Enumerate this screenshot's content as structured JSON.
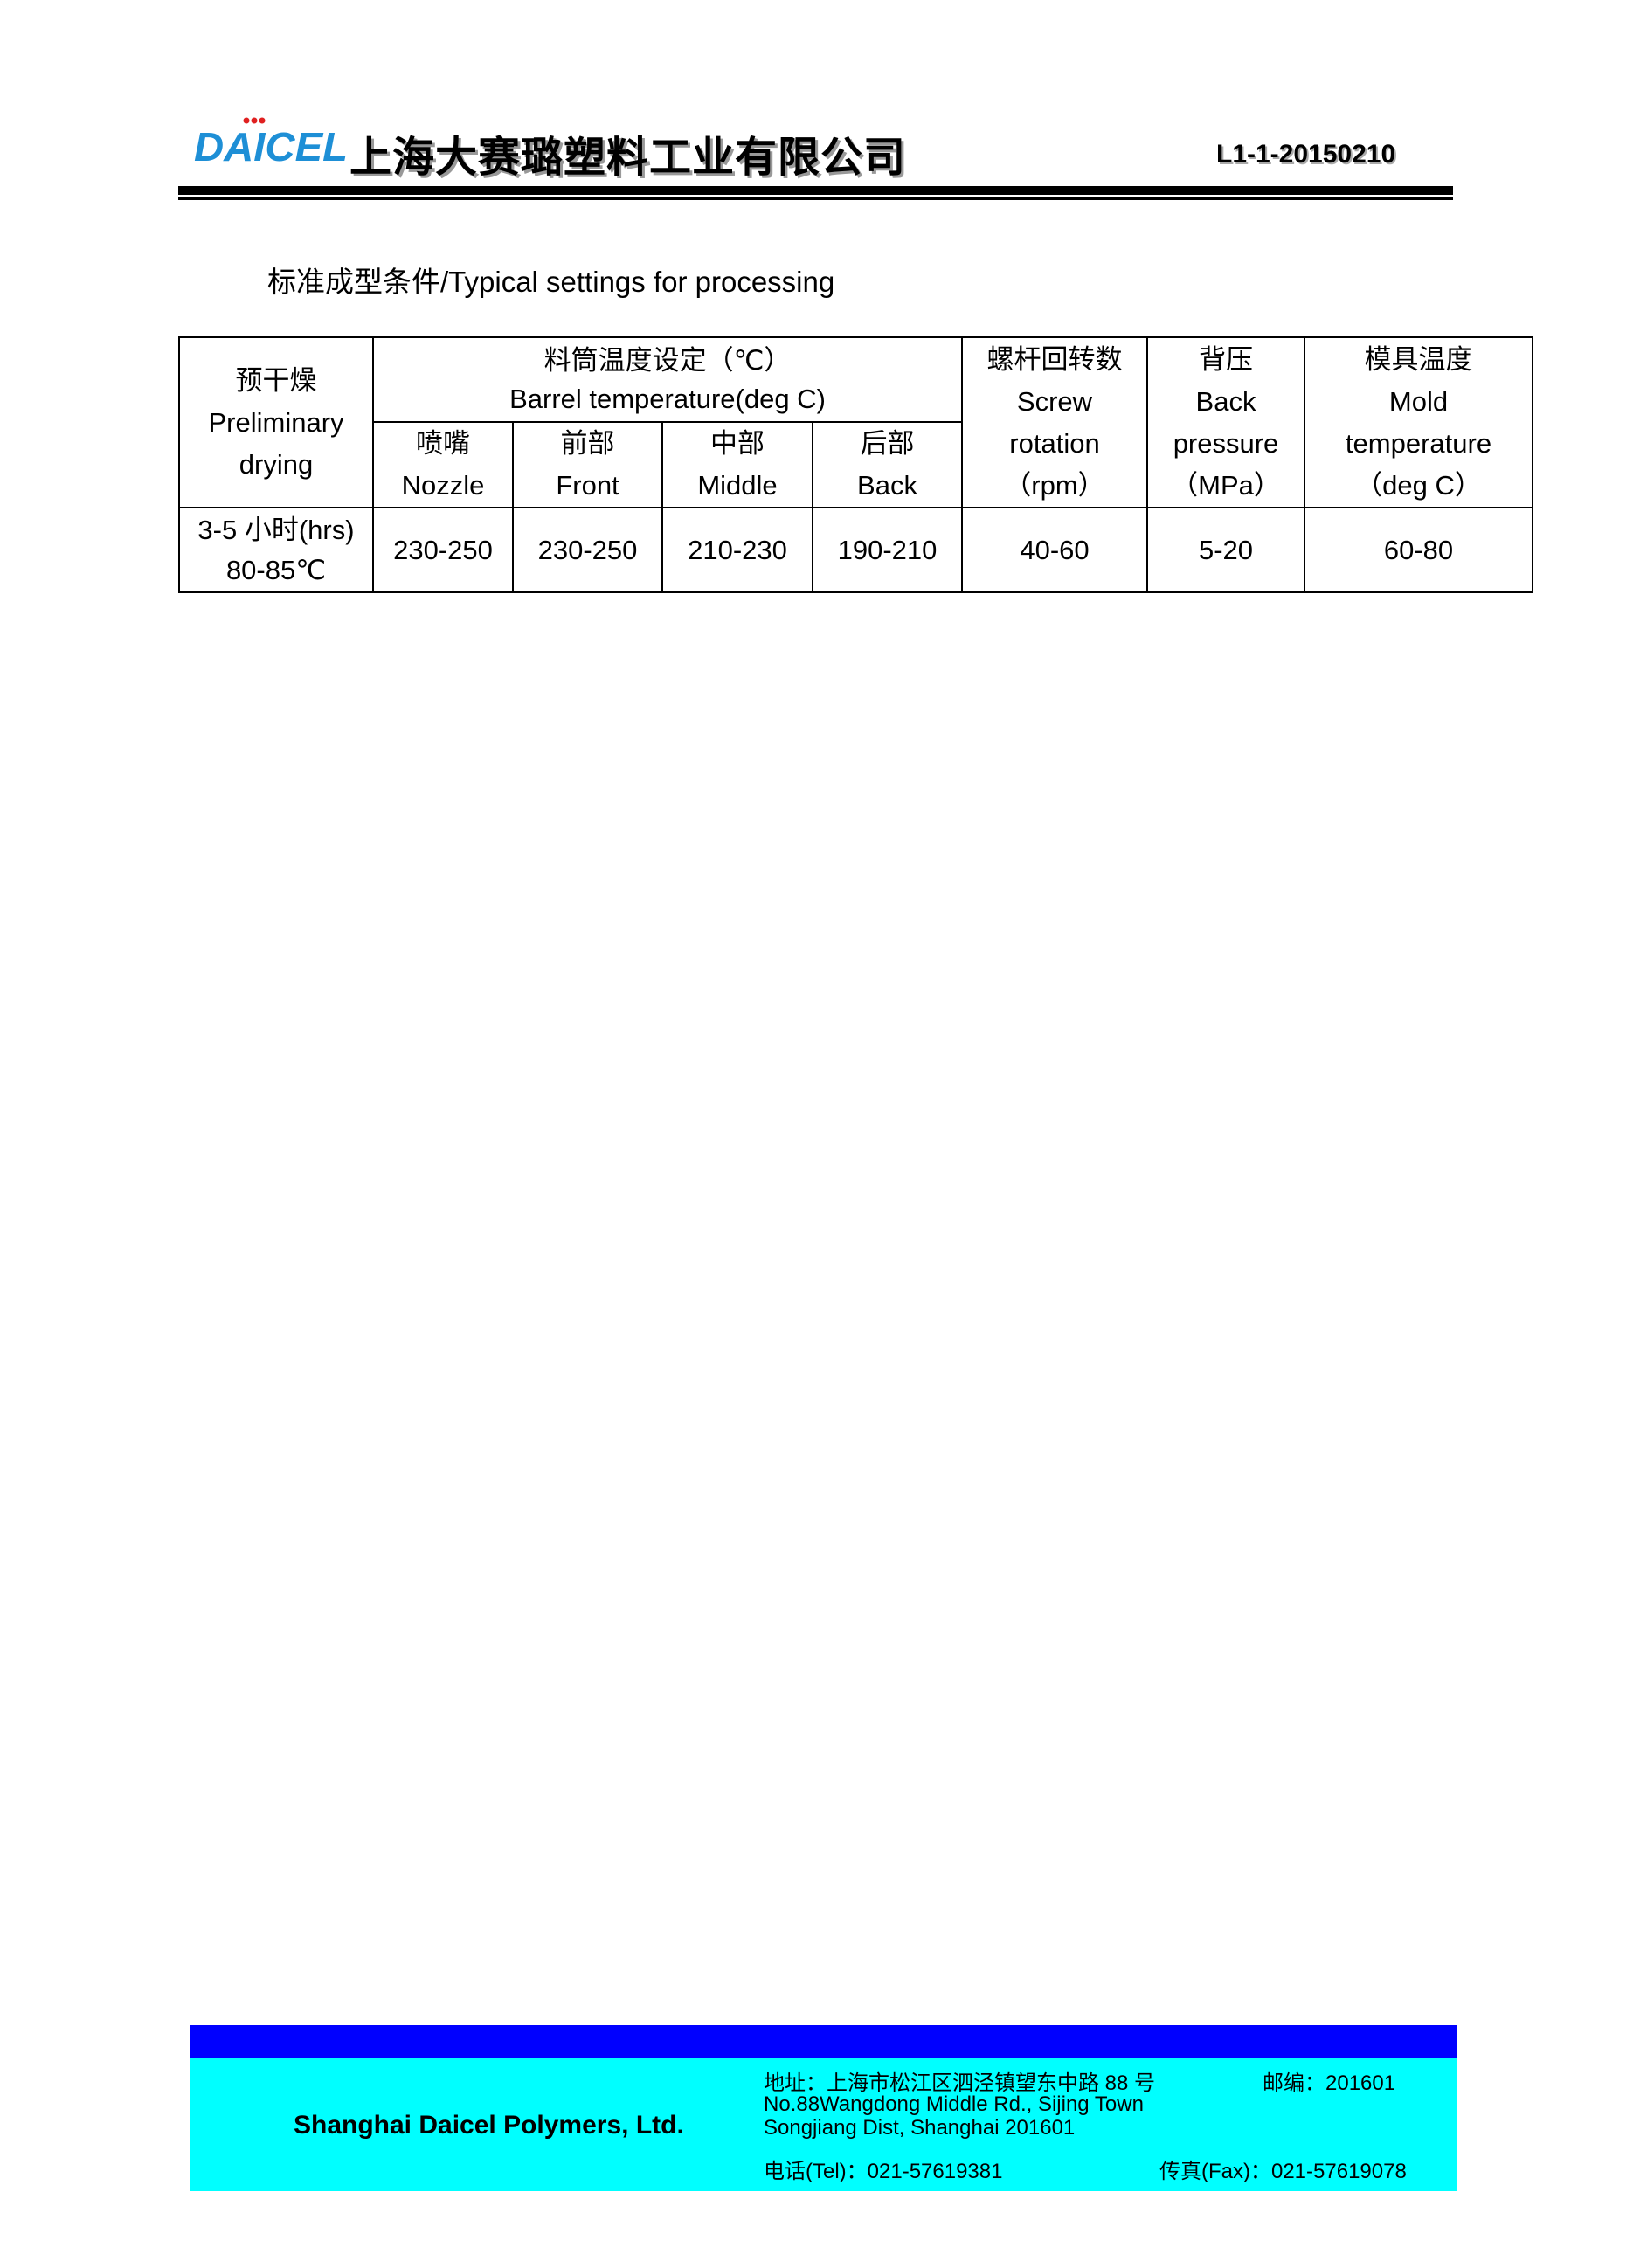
{
  "header": {
    "logo_text": "DAICEL",
    "company_cn": "上海大赛璐塑料工业有限公司",
    "doc_code": "L1-1-20150210",
    "logo_color": "#1e8fd6"
  },
  "subtitle": "标准成型条件/Typical settings for processing",
  "table": {
    "drying_header": [
      "预干燥",
      "Preliminary",
      "drying"
    ],
    "barrel_header": [
      "料筒温度设定（℃）",
      "Barrel temperature(deg C)"
    ],
    "barrel_zones": [
      [
        "喷嘴",
        "Nozzle"
      ],
      [
        "前部",
        "Front"
      ],
      [
        "中部",
        "Middle"
      ],
      [
        "后部",
        "Back"
      ]
    ],
    "screw_header": [
      "螺杆回转数",
      "Screw",
      "rotation",
      "（rpm）"
    ],
    "back_pressure_header": [
      "背压",
      "Back",
      "pressure",
      "（MPa）"
    ],
    "mold_header": [
      "模具温度",
      "Mold",
      "temperature",
      "（deg C）"
    ],
    "row": {
      "drying": [
        "3-5 小时(hrs)",
        "80-85℃"
      ],
      "nozzle": "230-250",
      "front": "230-250",
      "middle": "210-230",
      "back": "190-210",
      "screw_rotation": "40-60",
      "back_pressure": "5-20",
      "mold_temperature": "60-80"
    }
  },
  "footer": {
    "company_en": "Shanghai Daicel Polymers, Ltd.",
    "address_cn": "地址：上海市松江区泗泾镇望东中路 88 号",
    "postal": "邮编：201601",
    "address_en_1": "No.88Wangdong Middle Rd., Sijing Town",
    "address_en_2": "Songjiang Dist, Shanghai 201601",
    "tel": "电话(Tel)：021-57619381",
    "fax": "传真(Fax)：021-57619078",
    "band_top_color": "#0000ff",
    "band_color": "#00ffff"
  }
}
